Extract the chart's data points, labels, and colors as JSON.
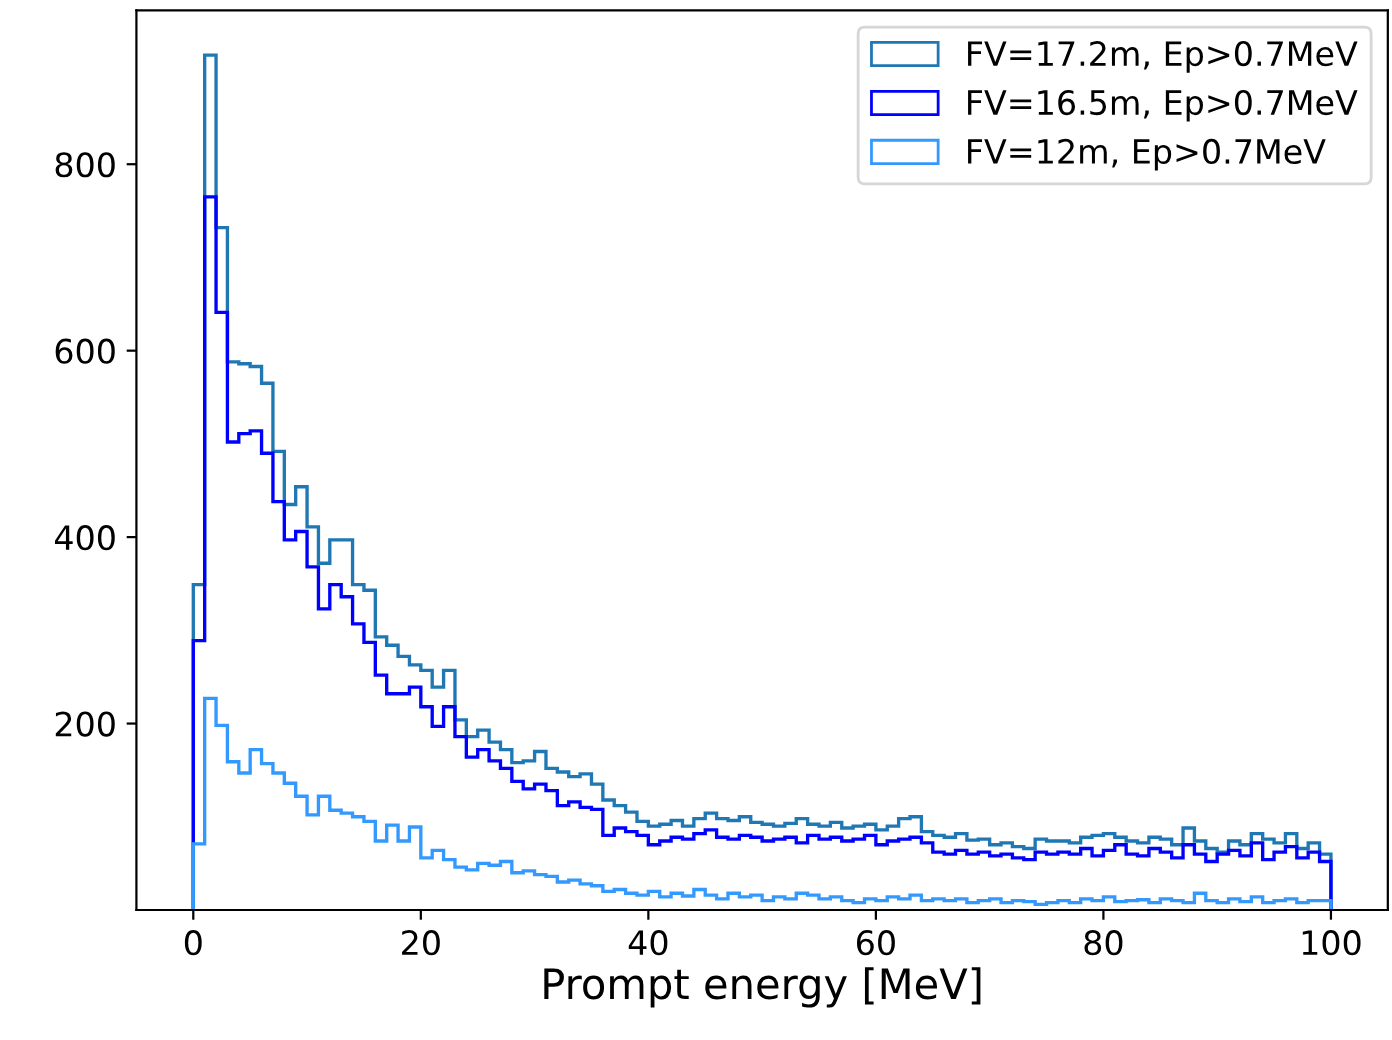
{
  "chart_data": {
    "type": "histogram",
    "xlabel": "Prompt energy [MeV]",
    "bins": [
      0,
      1,
      2,
      3,
      4,
      5,
      6,
      7,
      8,
      9,
      10,
      11,
      12,
      13,
      14,
      15,
      16,
      17,
      18,
      19,
      20,
      21,
      22,
      23,
      24,
      25,
      26,
      27,
      28,
      29,
      30,
      31,
      32,
      33,
      34,
      35,
      36,
      37,
      38,
      39,
      40,
      41,
      42,
      43,
      44,
      45,
      46,
      47,
      48,
      49,
      50,
      51,
      52,
      53,
      54,
      55,
      56,
      57,
      58,
      59,
      60,
      61,
      62,
      63,
      64,
      65,
      66,
      67,
      68,
      69,
      70,
      71,
      72,
      73,
      74,
      75,
      76,
      77,
      78,
      79,
      80,
      81,
      82,
      83,
      84,
      85,
      86,
      87,
      88,
      89,
      90,
      91,
      92,
      93,
      94,
      95,
      96,
      97,
      98,
      99,
      100
    ],
    "series": [
      {
        "name": "FV=17.2m, Ep>0.7MeV",
        "color": "#1f77b4",
        "values": [
          349,
          917,
          732,
          588,
          586,
          583,
          565,
          492,
          435,
          454,
          411,
          372,
          397,
          397,
          349,
          343,
          293,
          284,
          272,
          263,
          257,
          239,
          257,
          204,
          186,
          193,
          180,
          172,
          158,
          160,
          170,
          152,
          148,
          143,
          146,
          135,
          118,
          112,
          105,
          95,
          90,
          92,
          96,
          90,
          98,
          104,
          98,
          96,
          100,
          94,
          92,
          90,
          93,
          98,
          92,
          90,
          94,
          88,
          90,
          92,
          86,
          90,
          98,
          100,
          84,
          80,
          78,
          82,
          75,
          76,
          70,
          72,
          68,
          66,
          76,
          74,
          74,
          72,
          78,
          80,
          82,
          78,
          74,
          72,
          78,
          76,
          70,
          88,
          74,
          66,
          62,
          74,
          70,
          82,
          76,
          72,
          82,
          66,
          72,
          60
        ]
      },
      {
        "name": "FV=16.5m, Ep>0.7MeV",
        "color": "#0000ff",
        "values": [
          289,
          765,
          641,
          502,
          511,
          514,
          490,
          438,
          397,
          406,
          368,
          323,
          349,
          336,
          307,
          287,
          252,
          232,
          232,
          239,
          218,
          197,
          218,
          186,
          164,
          172,
          160,
          152,
          138,
          130,
          135,
          128,
          112,
          116,
          110,
          108,
          80,
          88,
          84,
          80,
          70,
          74,
          78,
          76,
          82,
          86,
          78,
          76,
          80,
          78,
          74,
          76,
          78,
          72,
          80,
          76,
          78,
          74,
          76,
          80,
          70,
          74,
          76,
          78,
          72,
          62,
          60,
          64,
          60,
          62,
          58,
          60,
          56,
          54,
          62,
          60,
          62,
          60,
          66,
          58,
          64,
          70,
          60,
          58,
          66,
          62,
          56,
          70,
          60,
          52,
          60,
          64,
          58,
          72,
          54,
          62,
          68,
          56,
          62,
          52
        ]
      },
      {
        "name": "FV=12m, Ep>0.7MeV",
        "color": "#3399ff",
        "values": [
          71,
          227,
          198,
          159,
          147,
          172,
          157,
          147,
          136,
          122,
          102,
          122,
          107,
          104,
          100,
          95,
          74,
          91,
          74,
          89,
          56,
          64,
          54,
          46,
          43,
          50,
          48,
          52,
          40,
          42,
          38,
          36,
          30,
          32,
          28,
          26,
          20,
          22,
          18,
          16,
          20,
          14,
          18,
          15,
          22,
          16,
          12,
          18,
          14,
          16,
          10,
          14,
          12,
          18,
          16,
          12,
          14,
          10,
          8,
          12,
          10,
          14,
          12,
          16,
          10,
          12,
          10,
          12,
          8,
          10,
          12,
          8,
          10,
          9,
          6,
          8,
          10,
          8,
          12,
          10,
          14,
          9,
          10,
          11,
          8,
          12,
          10,
          8,
          18,
          10,
          8,
          12,
          9,
          14,
          8,
          10,
          12,
          8,
          10,
          10
        ]
      }
    ],
    "xlim": [
      -5,
      105
    ],
    "ylim": [
      0,
      965
    ],
    "xticks": [
      0,
      20,
      40,
      60,
      80,
      100
    ],
    "yticks": [
      200,
      400,
      600,
      800
    ],
    "legend": "top right",
    "grid": false
  }
}
